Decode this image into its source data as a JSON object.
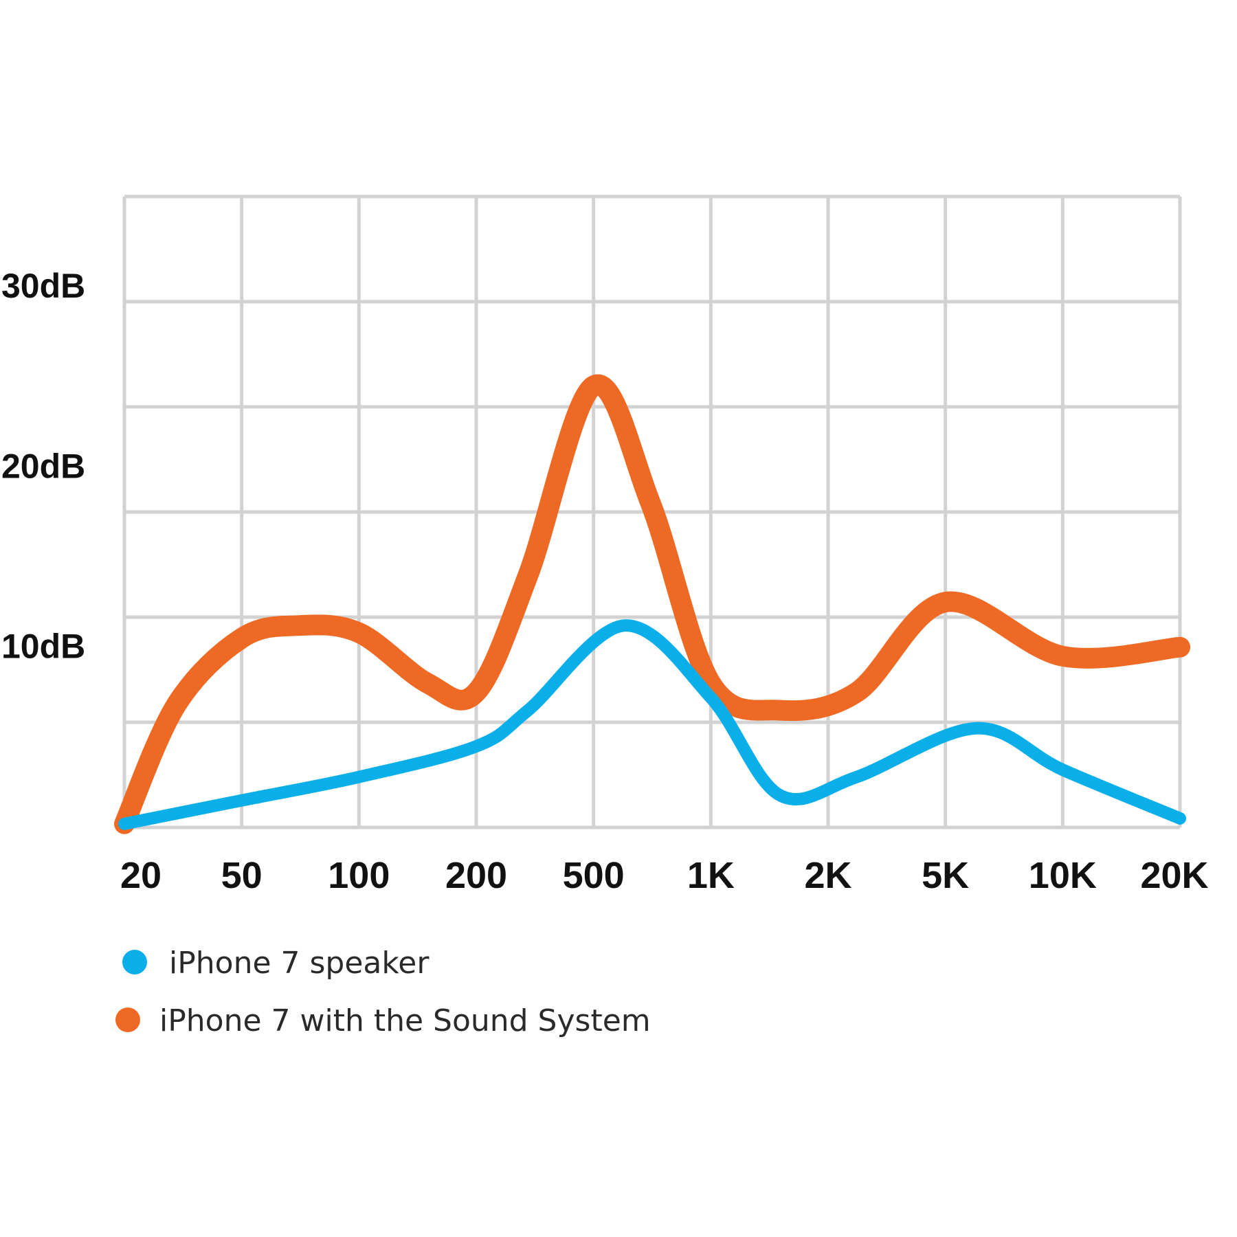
{
  "chart_data": {
    "type": "line",
    "x": [
      "20",
      "50",
      "100",
      "200",
      "500",
      "1K",
      "2K",
      "5K",
      "10K",
      "20K"
    ],
    "x_values": [
      20,
      50,
      100,
      200,
      500,
      1000,
      2000,
      5000,
      10000,
      20000
    ],
    "y_ticks": [
      "10dB",
      "20dB",
      "30dB"
    ],
    "y_tick_values": [
      10,
      20,
      30
    ],
    "ylim": [
      0,
      35
    ],
    "grid": true,
    "legend_position": "bottom-left",
    "series": [
      {
        "name": "iPhone 7 speaker",
        "color": "#0aaee9",
        "points": [
          [
            20,
            0.2
          ],
          [
            50,
            1.5
          ],
          [
            100,
            2.8
          ],
          [
            200,
            4.5
          ],
          [
            300,
            6.5
          ],
          [
            600,
            11.2
          ],
          [
            1000,
            7.2
          ],
          [
            1500,
            1.8
          ],
          [
            2500,
            2.8
          ],
          [
            6000,
            5.5
          ],
          [
            10000,
            3.2
          ],
          [
            20000,
            0.5
          ]
        ]
      },
      {
        "name": "iPhone 7 with the Sound System",
        "color": "#ee6a24",
        "points": [
          [
            20,
            0.2
          ],
          [
            30,
            6.8
          ],
          [
            50,
            10.5
          ],
          [
            70,
            11.2
          ],
          [
            100,
            10.8
          ],
          [
            150,
            8.0
          ],
          [
            200,
            7.5
          ],
          [
            300,
            14.0
          ],
          [
            500,
            24.5
          ],
          [
            700,
            18.0
          ],
          [
            1000,
            8.0
          ],
          [
            1500,
            6.5
          ],
          [
            2500,
            7.5
          ],
          [
            5000,
            12.5
          ],
          [
            10000,
            9.5
          ],
          [
            20000,
            10.0
          ]
        ]
      }
    ]
  }
}
